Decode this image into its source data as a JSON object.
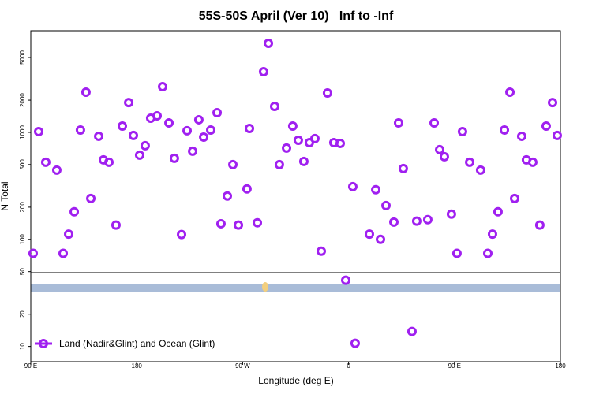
{
  "chart_data": {
    "type": "scatter",
    "title": "55S-50S April (Ver 10)   Inf to -Inf",
    "xlabel": "Longitude (deg E)",
    "ylabel": "N Total",
    "log_y": true,
    "legend": "bottom-left",
    "xlim": [
      90,
      540
    ],
    "ylim": [
      7.2,
      8900
    ],
    "xticks": [
      {
        "value": 90,
        "label": "90 E"
      },
      {
        "value": 180,
        "label": "180"
      },
      {
        "value": 270,
        "label": "90 W"
      },
      {
        "value": 360,
        "label": "0"
      },
      {
        "value": 450,
        "label": "90 E"
      },
      {
        "value": 540,
        "label": "180"
      }
    ],
    "yticks": [
      10,
      20,
      50,
      100,
      200,
      500,
      1000,
      2000,
      5000
    ],
    "series": [
      {
        "name": "Land (Nadir&Glint) and Ocean (Glint)",
        "color": "#a020f0",
        "x": [
          92.0,
          96.7,
          102.7,
          112.1,
          117.5,
          122.2,
          126.9,
          132.2,
          136.9,
          141.0,
          147.7,
          151.7,
          156.4,
          162.4,
          167.8,
          173.2,
          177.2,
          182.5,
          187.2,
          191.9,
          197.3,
          202.0,
          207.4,
          212.0,
          218.1,
          222.8,
          227.5,
          232.8,
          236.9,
          242.9,
          248.3,
          251.6,
          257.0,
          261.7,
          266.4,
          273.7,
          275.8,
          282.5,
          287.8,
          291.9,
          297.2,
          301.2,
          307.3,
          312.6,
          317.3,
          322.0,
          326.7,
          331.4,
          336.8,
          342.1,
          347.5,
          352.9,
          357.6,
          363.6,
          365.6,
          377.7,
          383.1,
          387.1,
          391.8,
          398.5,
          402.5,
          406.5,
          413.9,
          417.9,
          427.3,
          432.7,
          437.4,
          441.4,
          447.4,
          452.1,
          456.8,
          462.9,
          472.2,
          478.3,
          482.3,
          487.0,
          492.4,
          497.1,
          501.1,
          507.1,
          511.1,
          516.5,
          522.5,
          527.9,
          533.3,
          537.3
        ],
        "values": [
          74,
          1016,
          526,
          444,
          74,
          112,
          181,
          1052,
          2370,
          241,
          919,
          553,
          526,
          136,
          1145,
          1900,
          935,
          612,
          750,
          1356,
          1426,
          2670,
          1225,
          572,
          111,
          1035,
          666,
          1312,
          903,
          1052,
          1527,
          140,
          254,
          500,
          136,
          296,
          1088,
          143,
          3684,
          6780,
          1749,
          500,
          713,
          1145,
          844,
          535,
          802,
          874,
          77.6,
          2330,
          802,
          789,
          41.5,
          311,
          10.7,
          112,
          291,
          100,
          207,
          145,
          1225,
          459,
          13.8,
          148,
          153,
          1225,
          689,
          592,
          172,
          74,
          1016,
          526,
          444,
          74,
          112,
          181,
          1052,
          2370,
          241,
          919,
          553,
          526,
          136,
          1145,
          1900,
          935
        ]
      }
    ]
  }
}
